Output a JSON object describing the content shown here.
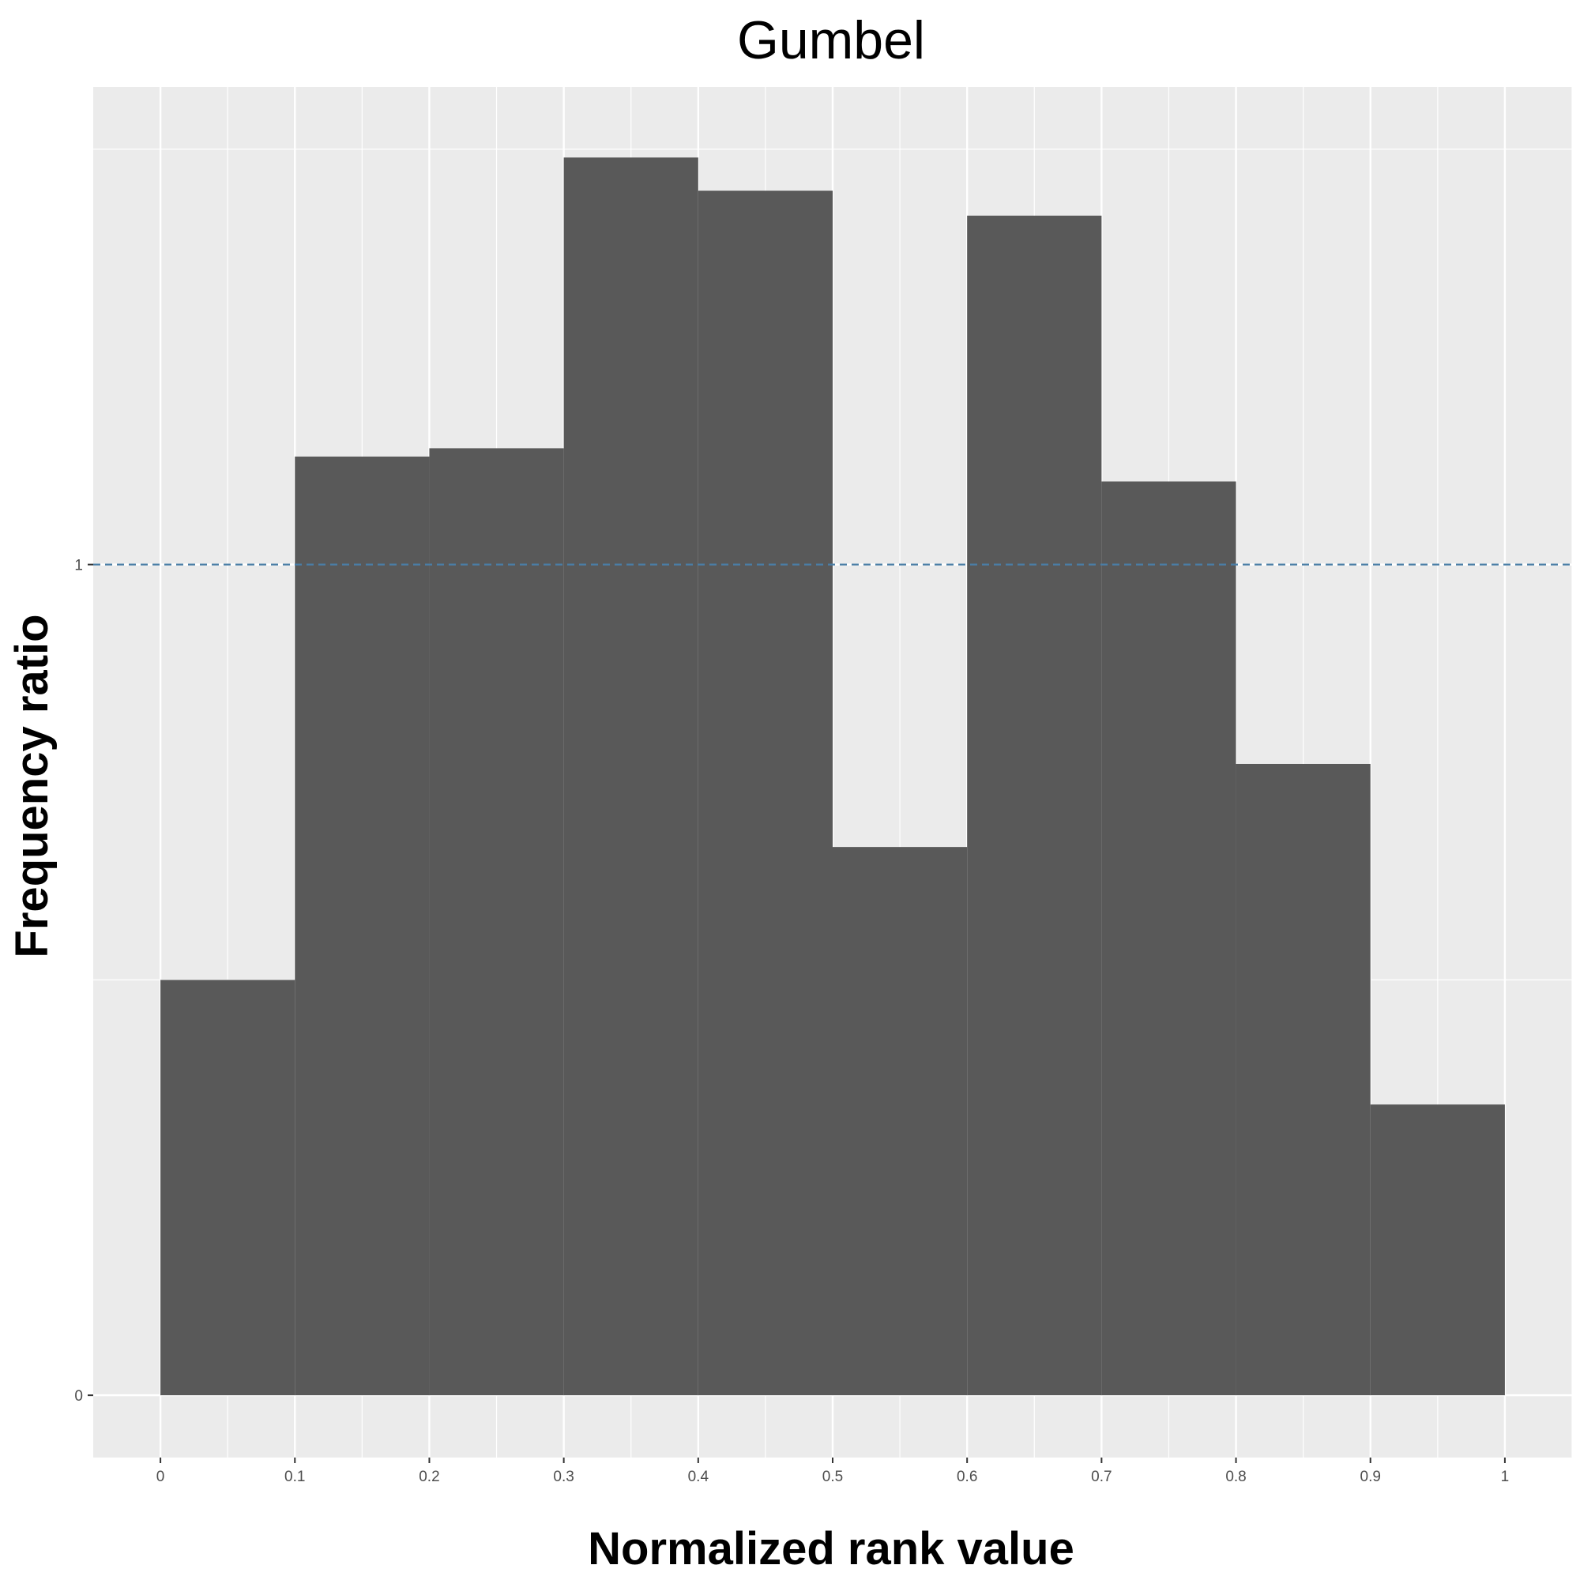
{
  "chart_data": {
    "type": "bar",
    "title": "Gumbel",
    "xlabel": "Normalized rank value",
    "ylabel": "Frequency ratio",
    "bins": [
      {
        "x0": 0.0,
        "x1": 0.1,
        "value": 0.5
      },
      {
        "x0": 0.1,
        "x1": 0.2,
        "value": 1.13
      },
      {
        "x0": 0.2,
        "x1": 0.3,
        "value": 1.14
      },
      {
        "x0": 0.3,
        "x1": 0.4,
        "value": 1.49
      },
      {
        "x0": 0.4,
        "x1": 0.5,
        "value": 1.45
      },
      {
        "x0": 0.5,
        "x1": 0.6,
        "value": 0.66
      },
      {
        "x0": 0.6,
        "x1": 0.7,
        "value": 1.42
      },
      {
        "x0": 0.7,
        "x1": 0.8,
        "value": 1.1
      },
      {
        "x0": 0.8,
        "x1": 0.9,
        "value": 0.76
      },
      {
        "x0": 0.9,
        "x1": 1.0,
        "value": 0.35
      }
    ],
    "x_ticks": [
      "0",
      "0.1",
      "0.2",
      "0.3",
      "0.4",
      "0.5",
      "0.6",
      "0.7",
      "0.8",
      "0.9",
      "1"
    ],
    "y_ticks": [
      "0",
      "1"
    ],
    "xlim": [
      -0.05,
      1.05
    ],
    "ylim": [
      -0.075,
      1.575
    ],
    "reference_line": {
      "y": 1,
      "style": "dashed",
      "color": "#4a7ea6"
    },
    "grid": true,
    "colors": {
      "bar": "#595959",
      "panel": "#ebebeb",
      "grid": "#ffffff"
    }
  }
}
